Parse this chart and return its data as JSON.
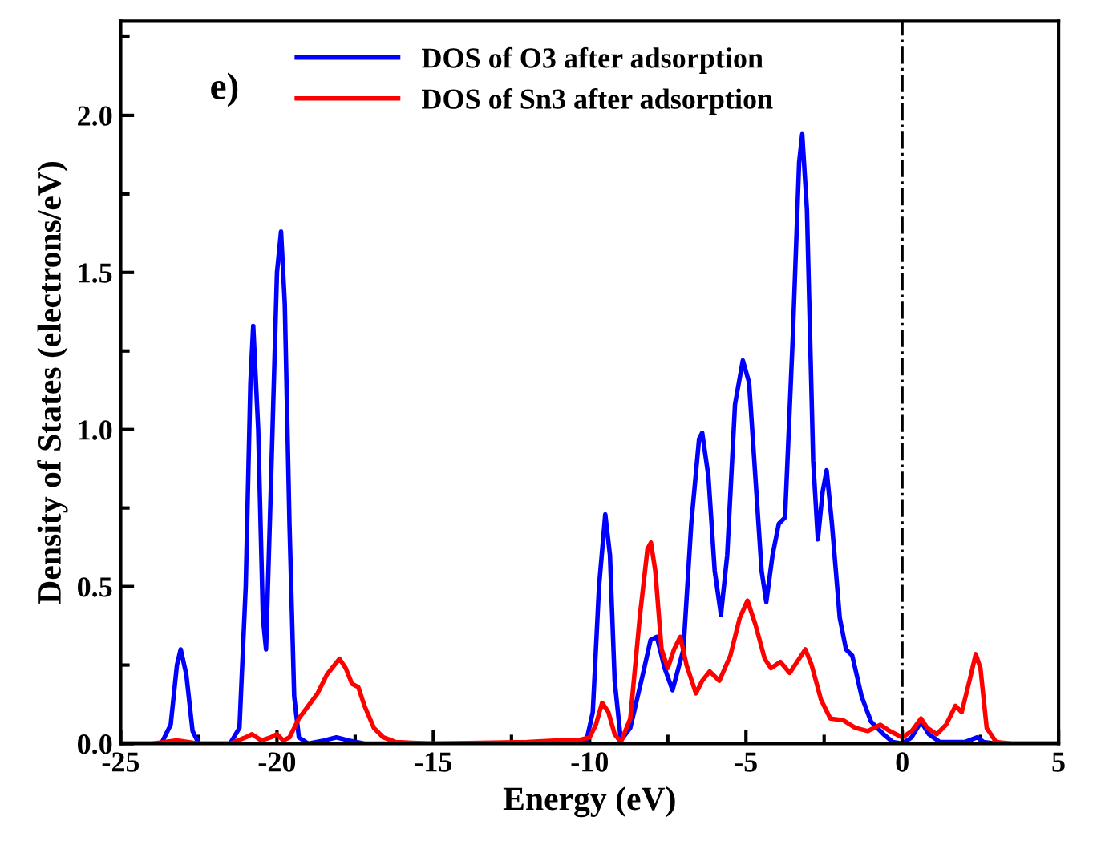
{
  "chart_data": {
    "type": "line",
    "xlabel": "Energy (eV)",
    "ylabel": "Density of States (electrons/eV)",
    "annotations": [
      "e)"
    ],
    "xlim": [
      -25,
      5
    ],
    "xticks": [
      -25,
      -20,
      -15,
      -10,
      -5,
      0,
      5
    ],
    "ylim": [
      0,
      2.3
    ],
    "yticks": [
      {
        "value": 0,
        "label": "0.0"
      },
      {
        "value": 0.5,
        "label": "0.5"
      },
      {
        "value": 1,
        "label": "1.0"
      },
      {
        "value": 1.5,
        "label": "1.5"
      },
      {
        "value": 2,
        "label": "2.0"
      }
    ],
    "grid": false,
    "legend": "top left",
    "line_style": "solid",
    "ref_lines": [
      {
        "axis": "x",
        "value": 0,
        "color": "#000000",
        "line_style": "dashdot"
      }
    ],
    "series": [
      {
        "name": "DOS of O3 after adsorption",
        "color": "#0000ff",
        "x": [
          -25,
          -23.7,
          -23.4,
          -23.2,
          -23.08,
          -22.9,
          -22.7,
          -22.5,
          -21.5,
          -21.2,
          -21.0,
          -20.85,
          -20.76,
          -20.6,
          -20.45,
          -20.35,
          -20.2,
          -20.0,
          -19.87,
          -19.75,
          -19.6,
          -19.45,
          -19.3,
          -19.0,
          -18.5,
          -18.1,
          -17.7,
          -17.2,
          -10.5,
          -10.1,
          -9.9,
          -9.7,
          -9.5,
          -9.35,
          -9.2,
          -9.0,
          -8.7,
          -8.3,
          -8.05,
          -7.85,
          -7.6,
          -7.35,
          -7.0,
          -6.75,
          -6.5,
          -6.4,
          -6.2,
          -6.0,
          -5.8,
          -5.6,
          -5.35,
          -5.1,
          -4.9,
          -4.7,
          -4.5,
          -4.35,
          -4.15,
          -3.95,
          -3.75,
          -3.5,
          -3.3,
          -3.2,
          -3.05,
          -2.85,
          -2.7,
          -2.55,
          -2.42,
          -2.25,
          -2.0,
          -1.8,
          -1.6,
          -1.3,
          -1.0,
          -0.6,
          -0.3,
          0,
          0.3,
          0.6,
          0.85,
          1.2,
          2.0,
          2.4,
          2.6,
          3.0,
          5
        ],
        "values": [
          0,
          0,
          0.06,
          0.25,
          0.3,
          0.22,
          0.04,
          0,
          0,
          0.05,
          0.5,
          1.15,
          1.33,
          1.0,
          0.4,
          0.3,
          0.8,
          1.5,
          1.63,
          1.4,
          0.7,
          0.15,
          0.02,
          0,
          0.01,
          0.02,
          0.01,
          0,
          0,
          0.01,
          0.1,
          0.5,
          0.73,
          0.6,
          0.2,
          0.01,
          0.05,
          0.22,
          0.33,
          0.34,
          0.24,
          0.17,
          0.3,
          0.7,
          0.97,
          0.99,
          0.85,
          0.55,
          0.41,
          0.6,
          1.08,
          1.22,
          1.15,
          0.85,
          0.55,
          0.45,
          0.6,
          0.7,
          0.72,
          1.3,
          1.85,
          1.94,
          1.7,
          0.9,
          0.65,
          0.8,
          0.87,
          0.7,
          0.4,
          0.3,
          0.28,
          0.15,
          0.07,
          0.03,
          0.005,
          0,
          0.02,
          0.07,
          0.03,
          0.005,
          0.005,
          0.02,
          0.005,
          0,
          0
        ]
      },
      {
        "name": "DOS of Sn3 after adsorption",
        "color": "#ff0000",
        "x": [
          -25,
          -24,
          -23.2,
          -22.5,
          -21.5,
          -21.0,
          -20.8,
          -20.5,
          -20.2,
          -20.0,
          -19.8,
          -19.6,
          -19.3,
          -19.0,
          -18.7,
          -18.4,
          -18.0,
          -17.8,
          -17.6,
          -17.4,
          -17.2,
          -16.9,
          -16.6,
          -16.2,
          -15,
          -12,
          -11,
          -10.4,
          -10.0,
          -9.8,
          -9.6,
          -9.4,
          -9.2,
          -9.0,
          -8.7,
          -8.4,
          -8.15,
          -8.04,
          -7.9,
          -7.7,
          -7.5,
          -7.3,
          -7.1,
          -6.9,
          -6.6,
          -6.4,
          -6.16,
          -5.85,
          -5.5,
          -5.2,
          -4.95,
          -4.7,
          -4.4,
          -4.2,
          -3.9,
          -3.6,
          -3.3,
          -3.1,
          -2.9,
          -2.6,
          -2.3,
          -1.9,
          -1.5,
          -1.1,
          -0.7,
          -0.4,
          0.0,
          0.3,
          0.6,
          0.8,
          1.1,
          1.4,
          1.7,
          1.9,
          2.15,
          2.35,
          2.5,
          2.7,
          3.0,
          3.5,
          5
        ],
        "values": [
          0,
          0,
          0.01,
          0,
          0,
          0.02,
          0.03,
          0.01,
          0.02,
          0.03,
          0.01,
          0.02,
          0.08,
          0.12,
          0.16,
          0.22,
          0.27,
          0.24,
          0.19,
          0.18,
          0.12,
          0.05,
          0.02,
          0.005,
          0,
          0.005,
          0.01,
          0.01,
          0.02,
          0.06,
          0.13,
          0.1,
          0.03,
          0.005,
          0.08,
          0.4,
          0.62,
          0.64,
          0.55,
          0.3,
          0.24,
          0.3,
          0.34,
          0.25,
          0.16,
          0.2,
          0.23,
          0.2,
          0.28,
          0.4,
          0.455,
          0.38,
          0.27,
          0.24,
          0.26,
          0.225,
          0.27,
          0.3,
          0.25,
          0.14,
          0.08,
          0.075,
          0.05,
          0.04,
          0.06,
          0.04,
          0.02,
          0.04,
          0.08,
          0.05,
          0.03,
          0.06,
          0.12,
          0.1,
          0.2,
          0.285,
          0.24,
          0.05,
          0.005,
          0,
          0
        ]
      }
    ]
  }
}
